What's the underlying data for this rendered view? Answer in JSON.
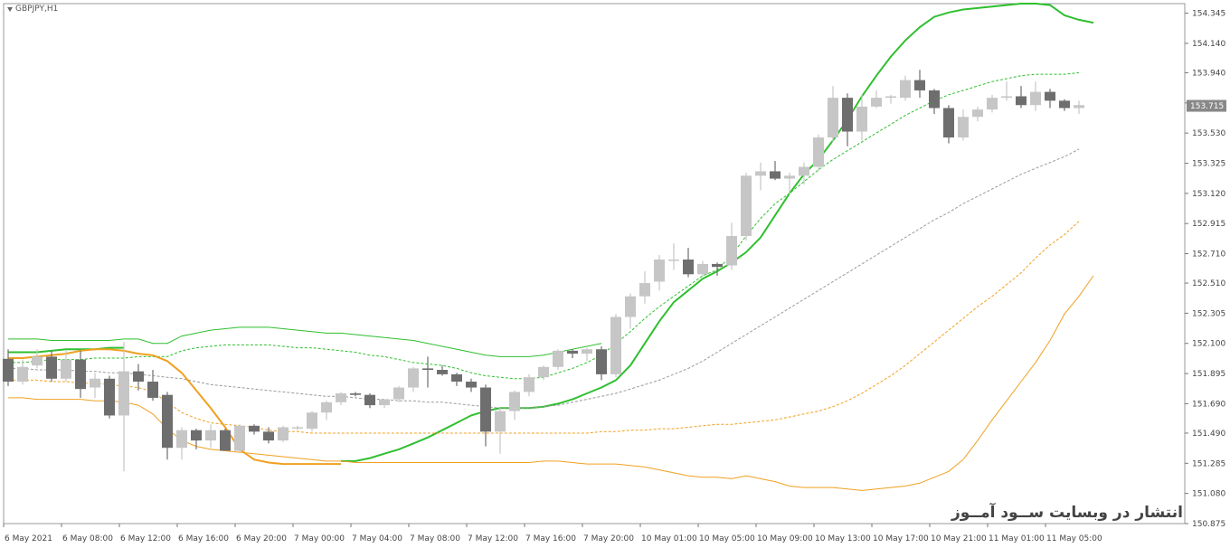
{
  "header": {
    "symbol_timeframe": "GBPJPY,H1"
  },
  "watermark": {
    "text": "انتشار در وبسایت ســود آمــوز"
  },
  "price_tag": {
    "value": "153.715"
  },
  "colors": {
    "bull_candle": "#c6c6c6",
    "bear_candle": "#6e6e6e",
    "upper_bands": "#33bb33",
    "lower_bands": "#f0a020",
    "middle_band": "#999999",
    "price_tag_bg": "#888888"
  },
  "chart_data": {
    "type": "candlestick",
    "symbol": "GBPJPY",
    "timeframe": "H1",
    "ylim": [
      150.875,
      154.41
    ],
    "y_ticks": [
      "154.345",
      "154.140",
      "153.940",
      "153.735",
      "153.530",
      "153.325",
      "153.120",
      "152.915",
      "152.710",
      "152.510",
      "152.305",
      "152.100",
      "151.895",
      "151.690",
      "151.490",
      "151.285",
      "151.080",
      "150.875"
    ],
    "x_ticks": [
      {
        "index": 0,
        "label": "6 May 2021"
      },
      {
        "index": 4,
        "label": "6 May 08:00"
      },
      {
        "index": 8,
        "label": "6 May 12:00"
      },
      {
        "index": 12,
        "label": "6 May 16:00"
      },
      {
        "index": 16,
        "label": "6 May 20:00"
      },
      {
        "index": 20,
        "label": "7 May 00:00"
      },
      {
        "index": 24,
        "label": "7 May 04:00"
      },
      {
        "index": 28,
        "label": "7 May 08:00"
      },
      {
        "index": 32,
        "label": "7 May 12:00"
      },
      {
        "index": 36,
        "label": "7 May 16:00"
      },
      {
        "index": 40,
        "label": "7 May 20:00"
      },
      {
        "index": 44,
        "label": "10 May 01:00"
      },
      {
        "index": 48,
        "label": "10 May 05:00"
      },
      {
        "index": 52,
        "label": "10 May 09:00"
      },
      {
        "index": 56,
        "label": "10 May 13:00"
      },
      {
        "index": 60,
        "label": "10 May 17:00"
      },
      {
        "index": 64,
        "label": "10 May 21:00"
      },
      {
        "index": 68,
        "label": "11 May 01:00"
      },
      {
        "index": 72,
        "label": "11 May 05:00"
      }
    ],
    "candles": [
      {
        "o": 151.995,
        "h": 152.06,
        "l": 151.81,
        "c": 151.84
      },
      {
        "o": 151.84,
        "h": 151.99,
        "l": 151.82,
        "c": 151.94
      },
      {
        "o": 151.95,
        "h": 152.06,
        "l": 151.93,
        "c": 152.01
      },
      {
        "o": 152.01,
        "h": 152.05,
        "l": 151.84,
        "c": 151.86
      },
      {
        "o": 151.86,
        "h": 152.05,
        "l": 151.84,
        "c": 151.99
      },
      {
        "o": 151.99,
        "h": 152.05,
        "l": 151.73,
        "c": 151.79
      },
      {
        "o": 151.8,
        "h": 151.9,
        "l": 151.73,
        "c": 151.86
      },
      {
        "o": 151.86,
        "h": 151.88,
        "l": 151.59,
        "c": 151.61
      },
      {
        "o": 151.61,
        "h": 152.11,
        "l": 151.23,
        "c": 151.91
      },
      {
        "o": 151.91,
        "h": 151.96,
        "l": 151.78,
        "c": 151.84
      },
      {
        "o": 151.84,
        "h": 151.92,
        "l": 151.71,
        "c": 151.73
      },
      {
        "o": 151.75,
        "h": 151.77,
        "l": 151.31,
        "c": 151.39
      },
      {
        "o": 151.39,
        "h": 151.53,
        "l": 151.31,
        "c": 151.51
      },
      {
        "o": 151.51,
        "h": 151.52,
        "l": 151.38,
        "c": 151.44
      },
      {
        "o": 151.44,
        "h": 151.55,
        "l": 151.39,
        "c": 151.51
      },
      {
        "o": 151.51,
        "h": 151.52,
        "l": 151.37,
        "c": 151.37
      },
      {
        "o": 151.37,
        "h": 151.55,
        "l": 151.36,
        "c": 151.54
      },
      {
        "o": 151.54,
        "h": 151.55,
        "l": 151.48,
        "c": 151.5
      },
      {
        "o": 151.5,
        "h": 151.53,
        "l": 151.42,
        "c": 151.44
      },
      {
        "o": 151.44,
        "h": 151.54,
        "l": 151.43,
        "c": 151.53
      },
      {
        "o": 151.53,
        "h": 151.54,
        "l": 151.51,
        "c": 151.53
      },
      {
        "o": 151.52,
        "h": 151.64,
        "l": 151.5,
        "c": 151.63
      },
      {
        "o": 151.63,
        "h": 151.71,
        "l": 151.58,
        "c": 151.7
      },
      {
        "o": 151.7,
        "h": 151.77,
        "l": 151.68,
        "c": 151.76
      },
      {
        "o": 151.76,
        "h": 151.77,
        "l": 151.74,
        "c": 151.75
      },
      {
        "o": 151.75,
        "h": 151.76,
        "l": 151.66,
        "c": 151.68
      },
      {
        "o": 151.68,
        "h": 151.72,
        "l": 151.66,
        "c": 151.72
      },
      {
        "o": 151.72,
        "h": 151.81,
        "l": 151.7,
        "c": 151.8
      },
      {
        "o": 151.8,
        "h": 151.94,
        "l": 151.77,
        "c": 151.93
      },
      {
        "o": 151.93,
        "h": 152.01,
        "l": 151.8,
        "c": 151.92
      },
      {
        "o": 151.92,
        "h": 151.95,
        "l": 151.88,
        "c": 151.89
      },
      {
        "o": 151.89,
        "h": 151.9,
        "l": 151.81,
        "c": 151.84
      },
      {
        "o": 151.84,
        "h": 151.86,
        "l": 151.77,
        "c": 151.8
      },
      {
        "o": 151.8,
        "h": 151.82,
        "l": 151.4,
        "c": 151.5
      },
      {
        "o": 151.5,
        "h": 151.66,
        "l": 151.35,
        "c": 151.64
      },
      {
        "o": 151.64,
        "h": 151.78,
        "l": 151.58,
        "c": 151.77
      },
      {
        "o": 151.77,
        "h": 151.89,
        "l": 151.74,
        "c": 151.87
      },
      {
        "o": 151.87,
        "h": 151.95,
        "l": 151.85,
        "c": 151.94
      },
      {
        "o": 151.94,
        "h": 152.06,
        "l": 151.92,
        "c": 152.05
      },
      {
        "o": 152.05,
        "h": 152.06,
        "l": 152.0,
        "c": 152.03
      },
      {
        "o": 152.03,
        "h": 152.07,
        "l": 151.98,
        "c": 152.06
      },
      {
        "o": 152.06,
        "h": 152.08,
        "l": 151.85,
        "c": 151.89
      },
      {
        "o": 151.89,
        "h": 152.3,
        "l": 151.87,
        "c": 152.28
      },
      {
        "o": 152.28,
        "h": 152.44,
        "l": 152.2,
        "c": 152.42
      },
      {
        "o": 152.42,
        "h": 152.59,
        "l": 152.37,
        "c": 152.51
      },
      {
        "o": 152.52,
        "h": 152.7,
        "l": 152.46,
        "c": 152.67
      },
      {
        "o": 152.67,
        "h": 152.78,
        "l": 152.6,
        "c": 152.67
      },
      {
        "o": 152.67,
        "h": 152.75,
        "l": 152.55,
        "c": 152.57
      },
      {
        "o": 152.57,
        "h": 152.66,
        "l": 152.56,
        "c": 152.64
      },
      {
        "o": 152.64,
        "h": 152.65,
        "l": 152.56,
        "c": 152.62
      },
      {
        "o": 152.63,
        "h": 152.92,
        "l": 152.6,
        "c": 152.83
      },
      {
        "o": 152.83,
        "h": 153.26,
        "l": 152.8,
        "c": 153.24
      },
      {
        "o": 153.24,
        "h": 153.33,
        "l": 153.14,
        "c": 153.27
      },
      {
        "o": 153.27,
        "h": 153.34,
        "l": 153.21,
        "c": 153.22
      },
      {
        "o": 153.22,
        "h": 153.26,
        "l": 153.11,
        "c": 153.24
      },
      {
        "o": 153.24,
        "h": 153.33,
        "l": 153.18,
        "c": 153.3
      },
      {
        "o": 153.3,
        "h": 153.52,
        "l": 153.27,
        "c": 153.5
      },
      {
        "o": 153.5,
        "h": 153.85,
        "l": 153.47,
        "c": 153.77
      },
      {
        "o": 153.77,
        "h": 153.8,
        "l": 153.44,
        "c": 153.54
      },
      {
        "o": 153.54,
        "h": 153.79,
        "l": 153.48,
        "c": 153.71
      },
      {
        "o": 153.71,
        "h": 153.82,
        "l": 153.7,
        "c": 153.77
      },
      {
        "o": 153.77,
        "h": 153.79,
        "l": 153.73,
        "c": 153.78
      },
      {
        "o": 153.77,
        "h": 153.92,
        "l": 153.75,
        "c": 153.89
      },
      {
        "o": 153.89,
        "h": 153.96,
        "l": 153.77,
        "c": 153.82
      },
      {
        "o": 153.82,
        "h": 153.83,
        "l": 153.66,
        "c": 153.7
      },
      {
        "o": 153.7,
        "h": 153.72,
        "l": 153.46,
        "c": 153.5
      },
      {
        "o": 153.5,
        "h": 153.69,
        "l": 153.48,
        "c": 153.64
      },
      {
        "o": 153.64,
        "h": 153.71,
        "l": 153.61,
        "c": 153.69
      },
      {
        "o": 153.69,
        "h": 153.79,
        "l": 153.67,
        "c": 153.77
      },
      {
        "o": 153.77,
        "h": 153.88,
        "l": 153.75,
        "c": 153.78
      },
      {
        "o": 153.78,
        "h": 153.85,
        "l": 153.7,
        "c": 153.72
      },
      {
        "o": 153.72,
        "h": 153.88,
        "l": 153.68,
        "c": 153.81
      },
      {
        "o": 153.81,
        "h": 153.83,
        "l": 153.7,
        "c": 153.75
      },
      {
        "o": 153.75,
        "h": 153.76,
        "l": 153.68,
        "c": 153.7
      },
      {
        "o": 153.7,
        "h": 153.75,
        "l": 153.66,
        "c": 153.72
      }
    ],
    "series": [
      {
        "color": "#2fbf2f",
        "style": "solid",
        "width": 2,
        "values": [
          152.04,
          152.04,
          152.04,
          152.05,
          152.06,
          152.06,
          152.06,
          152.07,
          152.07,
          null,
          null,
          null,
          null,
          null,
          null,
          null,
          null,
          null,
          null,
          null,
          null,
          null,
          null,
          151.3,
          151.3,
          151.32,
          151.35,
          151.38,
          151.42,
          151.46,
          151.51,
          151.56,
          151.61,
          151.64,
          151.66,
          151.66,
          151.66,
          151.67,
          151.69,
          151.72,
          151.76,
          151.8,
          151.85,
          151.95,
          152.1,
          152.25,
          152.38,
          152.46,
          152.54,
          152.59,
          152.65,
          152.72,
          152.82,
          152.97,
          153.12,
          153.25,
          153.35,
          153.48,
          153.62,
          153.78,
          153.92,
          154.05,
          154.16,
          154.25,
          154.32,
          154.35,
          154.37,
          154.38,
          154.39,
          154.4,
          154.41,
          154.41,
          154.4,
          154.33,
          154.3,
          154.28
        ]
      },
      {
        "color": "#2fbf2f",
        "style": "solid",
        "width": 1,
        "values": [
          152.13,
          152.13,
          152.13,
          152.12,
          152.12,
          152.12,
          152.12,
          152.12,
          152.13,
          152.13,
          152.1,
          152.1,
          152.15,
          152.17,
          152.19,
          152.2,
          152.21,
          152.21,
          152.21,
          152.2,
          152.19,
          152.18,
          152.17,
          152.17,
          152.16,
          152.15,
          152.14,
          152.13,
          152.12,
          152.1,
          152.08,
          152.06,
          152.04,
          152.02,
          152.01,
          152.01,
          152.01,
          152.02,
          152.04,
          152.06,
          152.08,
          152.1
        ]
      },
      {
        "color": "#2fbf2f",
        "style": "dashed",
        "width": 1,
        "values": [
          151.97,
          151.97,
          151.98,
          151.99,
          151.99,
          151.99,
          152.0,
          152.0,
          152.0,
          152.01,
          152.01,
          152.01,
          152.05,
          152.07,
          152.08,
          152.09,
          152.09,
          152.09,
          152.09,
          152.08,
          152.07,
          152.07,
          152.06,
          152.05,
          152.04,
          152.02,
          152.01,
          151.99,
          151.97,
          151.96,
          151.95,
          151.93,
          151.9,
          151.88,
          151.87,
          151.86,
          151.86,
          151.87,
          151.9,
          151.93,
          151.97,
          152.02,
          152.1,
          152.18,
          152.27,
          152.35,
          152.42,
          152.49,
          152.56,
          152.6,
          152.7,
          152.83,
          152.95,
          153.05,
          153.12,
          153.2,
          153.28,
          153.35,
          153.41,
          153.47,
          153.53,
          153.59,
          153.65,
          153.7,
          153.75,
          153.79,
          153.82,
          153.85,
          153.88,
          153.9,
          153.92,
          153.93,
          153.93,
          153.93,
          153.94
        ]
      },
      {
        "color": "#9a9a9a",
        "style": "dashed",
        "width": 1,
        "values": [
          151.93,
          151.93,
          151.92,
          151.92,
          151.92,
          151.91,
          151.91,
          151.9,
          151.9,
          151.89,
          151.88,
          151.87,
          151.86,
          151.84,
          151.82,
          151.81,
          151.8,
          151.79,
          151.78,
          151.77,
          151.76,
          151.75,
          151.74,
          151.74,
          151.73,
          151.72,
          151.72,
          151.71,
          151.71,
          151.7,
          151.7,
          151.69,
          151.68,
          151.67,
          151.66,
          151.66,
          151.66,
          151.67,
          151.68,
          151.7,
          151.72,
          151.74,
          151.76,
          151.79,
          151.82,
          151.85,
          151.89,
          151.93,
          151.98,
          152.04,
          152.1,
          152.16,
          152.22,
          152.28,
          152.34,
          152.4,
          152.46,
          152.52,
          152.58,
          152.64,
          152.7,
          152.76,
          152.82,
          152.88,
          152.94,
          152.99,
          153.05,
          153.1,
          153.15,
          153.2,
          153.25,
          153.29,
          153.33,
          153.37,
          153.42
        ]
      },
      {
        "color": "#f0a020",
        "style": "dashed",
        "width": 1,
        "values": [
          151.85,
          151.85,
          151.85,
          151.84,
          151.84,
          151.83,
          151.83,
          151.82,
          151.81,
          151.8,
          151.77,
          151.7,
          151.63,
          151.59,
          151.56,
          151.55,
          151.54,
          151.53,
          151.51,
          151.5,
          151.5,
          151.49,
          151.49,
          151.49,
          151.49,
          151.49,
          151.49,
          151.49,
          151.49,
          151.49,
          151.49,
          151.49,
          151.49,
          151.49,
          151.49,
          151.49,
          151.49,
          151.49,
          151.49,
          151.49,
          151.49,
          151.5,
          151.5,
          151.51,
          151.51,
          151.52,
          151.52,
          151.53,
          151.54,
          151.55,
          151.55,
          151.56,
          151.57,
          151.58,
          151.6,
          151.62,
          151.64,
          151.67,
          151.71,
          151.76,
          151.82,
          151.88,
          151.95,
          152.03,
          152.11,
          152.19,
          152.27,
          152.35,
          152.42,
          152.5,
          152.58,
          152.68,
          152.77,
          152.84,
          152.93
        ]
      },
      {
        "color": "#f0a020",
        "style": "solid",
        "width": 1,
        "values": [
          151.73,
          151.73,
          151.72,
          151.72,
          151.72,
          151.72,
          151.71,
          151.71,
          151.7,
          151.68,
          151.62,
          151.52,
          151.44,
          151.4,
          151.38,
          151.37,
          151.36,
          151.35,
          151.34,
          151.33,
          151.32,
          151.31,
          151.3,
          151.3,
          151.29,
          151.29,
          151.29,
          151.29,
          151.29,
          151.29,
          151.29,
          151.29,
          151.29,
          151.29,
          151.29,
          151.29,
          151.29,
          151.3,
          151.3,
          151.29,
          151.28,
          151.28,
          151.28,
          151.27,
          151.26,
          151.24,
          151.22,
          151.2,
          151.19,
          151.19,
          151.18,
          151.2,
          151.18,
          151.16,
          151.13,
          151.12,
          151.12,
          151.12,
          151.11,
          151.1,
          151.11,
          151.12,
          151.13,
          151.15,
          151.19,
          151.23,
          151.31,
          151.44,
          151.58,
          151.71,
          151.84,
          151.97,
          152.12,
          152.3,
          152.42,
          152.56
        ]
      },
      {
        "color": "#f0a020",
        "style": "solid",
        "width": 2,
        "values": [
          152.0,
          152.0,
          152.01,
          152.02,
          152.03,
          152.05,
          152.06,
          152.06,
          152.05,
          152.03,
          152.02,
          151.98,
          151.9,
          151.78,
          151.66,
          151.53,
          151.38,
          151.31,
          151.29,
          151.28,
          151.28,
          151.28,
          151.28,
          151.28
        ]
      }
    ]
  }
}
